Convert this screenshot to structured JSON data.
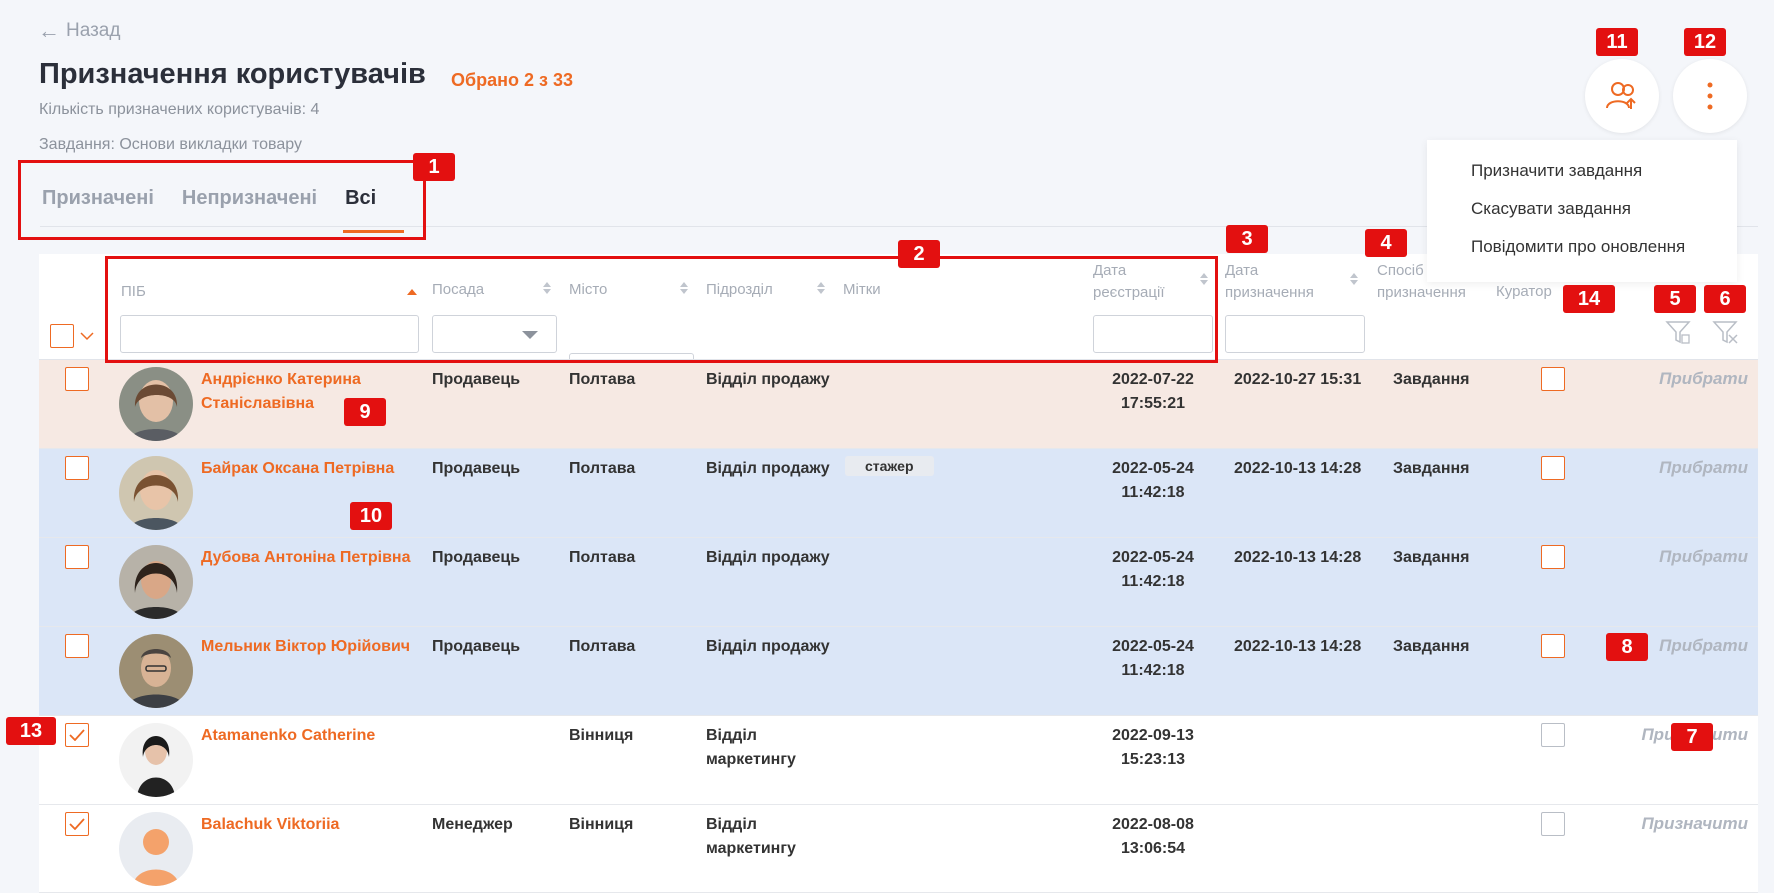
{
  "nav": {
    "back_label": "Назад"
  },
  "header": {
    "title": "Призначення користувачів",
    "selected": "Обрано 2 з 33",
    "assigned_count": "Кількість призначених користувачів: 4",
    "task": "Завдання: Основи викладки товару"
  },
  "tabs": [
    {
      "label": "Призначені"
    },
    {
      "label": "Непризначені"
    },
    {
      "label": "Всі"
    }
  ],
  "menu": {
    "items": [
      "Призначити завдання",
      "Скасувати завдання",
      "Повідомити про оновлення"
    ]
  },
  "columns": {
    "name": "ПІБ",
    "position": "Посада",
    "city": "Місто",
    "dept": "Підрозділ",
    "tags": "Мітки",
    "reg_date_1": "Дата",
    "reg_date_2": "реєстрації",
    "assign_date_1": "Дата",
    "assign_date_2": "призначення",
    "method_1": "Спосіб",
    "method_2": "призначення",
    "curator": "Куратор"
  },
  "rows": [
    {
      "name_1": "Андрієнко Катерина",
      "name_2": "Станіславівна",
      "position": "Продавець",
      "city": "Полтава",
      "dept_1": "Відділ продажу",
      "dept_2": "",
      "tag": "",
      "reg_date": "2022-07-22",
      "reg_time": "17:55:21",
      "assign_date": "2022-10-27 15:31",
      "method": "Завдання",
      "action": "Прибрати"
    },
    {
      "name_1": "Байрак Оксана Петрівна",
      "name_2": "",
      "position": "Продавець",
      "city": "Полтава",
      "dept_1": "Відділ продажу",
      "dept_2": "",
      "tag": "стажер",
      "reg_date": "2022-05-24",
      "reg_time": "11:42:18",
      "assign_date": "2022-10-13 14:28",
      "method": "Завдання",
      "action": "Прибрати"
    },
    {
      "name_1": "Дубова Антоніна Петрівна",
      "name_2": "",
      "position": "Продавець",
      "city": "Полтава",
      "dept_1": "Відділ продажу",
      "dept_2": "",
      "tag": "",
      "reg_date": "2022-05-24",
      "reg_time": "11:42:18",
      "assign_date": "2022-10-13 14:28",
      "method": "Завдання",
      "action": "Прибрати"
    },
    {
      "name_1": "Мельник Віктор Юрійович",
      "name_2": "",
      "position": "Продавець",
      "city": "Полтава",
      "dept_1": "Відділ продажу",
      "dept_2": "",
      "tag": "",
      "reg_date": "2022-05-24",
      "reg_time": "11:42:18",
      "assign_date": "2022-10-13 14:28",
      "method": "Завдання",
      "action": "Прибрати"
    },
    {
      "name_1": "Atamanenko Catherine",
      "name_2": "",
      "position": "",
      "city": "Вінниця",
      "dept_1": "Відділ",
      "dept_2": "маркетингу",
      "tag": "",
      "reg_date": "2022-09-13",
      "reg_time": "15:23:13",
      "assign_date": "",
      "method": "",
      "action": "Призначити"
    },
    {
      "name_1": "Balachuk Viktoriia",
      "name_2": "",
      "position": "Менеджер",
      "city": "Вінниця",
      "dept_1": "Відділ",
      "dept_2": "маркетингу",
      "tag": "",
      "reg_date": "2022-08-08",
      "reg_time": "13:06:54",
      "assign_date": "",
      "method": "",
      "action": "Призначити"
    }
  ],
  "annotations": [
    "1",
    "2",
    "3",
    "4",
    "5",
    "6",
    "7",
    "8",
    "9",
    "10",
    "11",
    "12",
    "13",
    "14"
  ],
  "colors": {
    "accent": "#ee6a23",
    "annotation": "#e31010",
    "highlight_blue": "#dbe6f7",
    "highlight_pink": "#f6e9e3"
  },
  "icons": [
    "arrow-left-icon",
    "users-upload-icon",
    "more-vertical-icon",
    "chevron-down-icon",
    "filter-settings-icon",
    "filter-clear-icon",
    "checkmark-icon"
  ]
}
